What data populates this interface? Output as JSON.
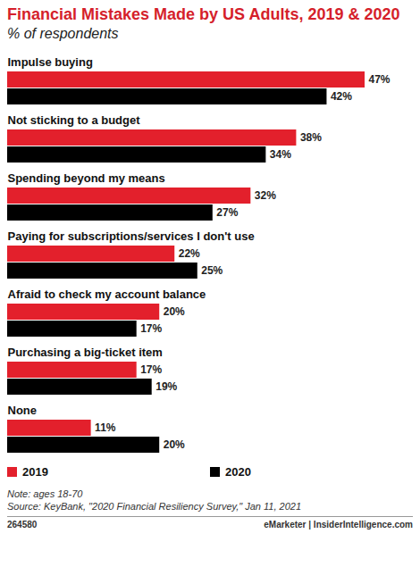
{
  "chart_data": {
    "type": "bar",
    "title": "Financial Mistakes Made by US Adults, 2019 & 2020",
    "subtitle": "% of respondents",
    "orientation": "horizontal",
    "categories": [
      "Impulse buying",
      "Not sticking to a budget",
      "Spending beyond my means",
      "Paying for subscriptions/services I don't use",
      "Afraid to check my account balance",
      "Purchasing a big-ticket item",
      "None"
    ],
    "series": [
      {
        "name": "2019",
        "color": "#e3202c",
        "values": [
          47,
          38,
          32,
          22,
          20,
          17,
          11
        ],
        "value_labels": [
          "47%",
          "38%",
          "32%",
          "22%",
          "20%",
          "17%",
          "11%"
        ]
      },
      {
        "name": "2020",
        "color": "#000000",
        "values": [
          42,
          34,
          27,
          25,
          17,
          19,
          20
        ],
        "value_labels": [
          "42%",
          "34%",
          "27%",
          "25%",
          "17%",
          "19%",
          "20%"
        ]
      }
    ],
    "xlim": [
      0,
      47
    ],
    "data_labels": true,
    "tick_labels": false,
    "grid": false,
    "legend": "bottom",
    "note": "Note: ages 18-70",
    "source": "Source: KeyBank, \"2020 Financial Resiliency Survey,\" Jan 11, 2021",
    "footer_id": "264580",
    "footer_brand": "eMarketer | InsiderIntelligence.com"
  }
}
